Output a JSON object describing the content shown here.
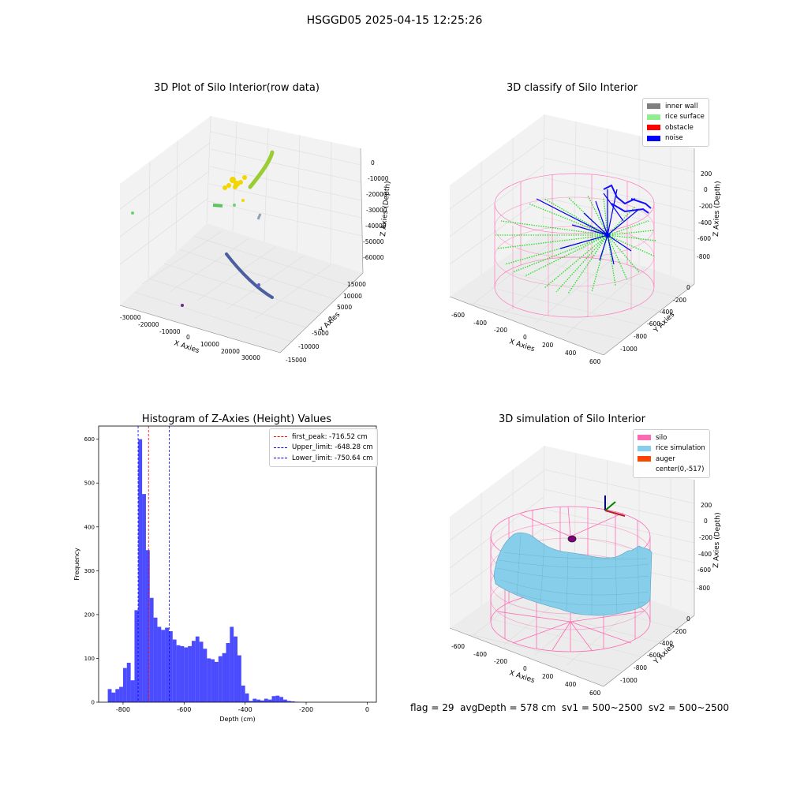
{
  "suptitle": "HSGGD05 2025-04-15 12:25:26",
  "panel1": {
    "title": "3D Plot of Silo Interior(row data)",
    "xlabel": "X Axies",
    "ylabel": "Y Axies",
    "zlabel": "Z Axies (Depth)",
    "xticks": [
      "-30000",
      "-20000",
      "-10000",
      "0",
      "10000",
      "20000",
      "30000"
    ],
    "yticks": [
      "-15000",
      "-10000",
      "-5000",
      "0",
      "5000",
      "10000",
      "15000"
    ],
    "zticks": [
      "0",
      "-10000",
      "-20000",
      "-30000",
      "-40000",
      "-50000",
      "-60000"
    ]
  },
  "panel2": {
    "title": "3D classify of Silo Interior",
    "xlabel": "X Axies",
    "ylabel": "Y Axies",
    "zlabel": "Z Axies (Depth)",
    "xticks": [
      "-600",
      "-400",
      "-200",
      "0",
      "200",
      "400",
      "600"
    ],
    "yticks": [
      "0",
      "-200",
      "-400",
      "-600",
      "-800",
      "-1000"
    ],
    "zticks": [
      "200",
      "0",
      "-200",
      "-400",
      "-600",
      "-800"
    ],
    "legend": [
      {
        "label": "inner wall",
        "color": "#808080"
      },
      {
        "label": "rice surface",
        "color": "#90ee90"
      },
      {
        "label": "obstacle",
        "color": "#ff0000"
      },
      {
        "label": "noise",
        "color": "#0000ff"
      }
    ]
  },
  "panel4": {
    "title": "3D simulation of Silo Interior",
    "xlabel": "X Axies",
    "ylabel": "Y Axies",
    "zlabel": "Z Axies (Depth)",
    "xticks": [
      "-600",
      "-400",
      "-200",
      "0",
      "200",
      "400",
      "600"
    ],
    "yticks": [
      "0",
      "-200",
      "-400",
      "-600",
      "-800",
      "-1000"
    ],
    "zticks": [
      "200",
      "0",
      "-200",
      "-400",
      "-600",
      "-800"
    ],
    "legend": [
      {
        "label": "silo",
        "color": "#ff69b4"
      },
      {
        "label": "rice simulation",
        "color": "#87ceeb"
      },
      {
        "label": "auger",
        "color": "#ff4500"
      },
      {
        "label": "center(0,-517)",
        "color": ""
      }
    ]
  },
  "status": "flag = 29  avgDepth = 578 cm  sv1 = 500~2500  sv2 = 500~2500",
  "chart_data": [
    {
      "type": "bar",
      "title": "Histogram of Z-Axies (Height) Values",
      "xlabel": "Depth (cm)",
      "ylabel": "Frequency",
      "xlim": [
        -880,
        30
      ],
      "ylim": [
        0,
        630
      ],
      "xticks": [
        -800,
        -600,
        -400,
        -200,
        0
      ],
      "yticks": [
        0,
        100,
        200,
        300,
        400,
        500,
        600
      ],
      "bar_color": "#0000ff",
      "bin_edges": [
        -850,
        -837.5,
        -825,
        -812.5,
        -800,
        -787.5,
        -775,
        -762.5,
        -750,
        -737.5,
        -725,
        -712.5,
        -700,
        -687.5,
        -675,
        -662.5,
        -650,
        -637.5,
        -625,
        -612.5,
        -600,
        -587.5,
        -575,
        -562.5,
        -550,
        -537.5,
        -525,
        -512.5,
        -500,
        -487.5,
        -475,
        -462.5,
        -450,
        -437.5,
        -425,
        -412.5,
        -400,
        -387.5,
        -375,
        -362.5,
        -350,
        -337.5,
        -325,
        -312.5,
        -300,
        -287.5,
        -275,
        -262.5,
        -250,
        -237.5,
        -225,
        -212.5,
        -200,
        -187.5,
        -175,
        -162.5,
        -150,
        -137.5,
        -125,
        -112.5,
        -100,
        -87.5,
        -75,
        -62.5,
        -50,
        -37.5,
        -25,
        -12.5,
        0
      ],
      "counts": [
        30,
        22,
        30,
        35,
        78,
        90,
        50,
        210,
        600,
        475,
        347,
        238,
        193,
        172,
        165,
        170,
        162,
        143,
        130,
        128,
        125,
        128,
        140,
        150,
        138,
        122,
        100,
        98,
        92,
        105,
        112,
        135,
        172,
        150,
        107,
        38,
        20,
        3,
        8,
        6,
        4,
        8,
        6,
        14,
        15,
        12,
        6,
        3,
        2,
        1,
        0,
        0,
        0,
        0,
        0,
        0,
        0,
        0,
        0,
        0,
        0,
        0,
        0,
        0,
        0,
        0,
        0,
        0
      ],
      "vlines": [
        {
          "label": "first_peak: -716.52 cm",
          "x": -716.52,
          "color": "#ff0000"
        },
        {
          "label": "Upper_limit: -648.28 cm",
          "x": -648.28,
          "color": "#0000ff"
        },
        {
          "label": "Lower_limit: -750.64 cm",
          "x": -750.64,
          "color": "#0000ff"
        }
      ]
    }
  ]
}
